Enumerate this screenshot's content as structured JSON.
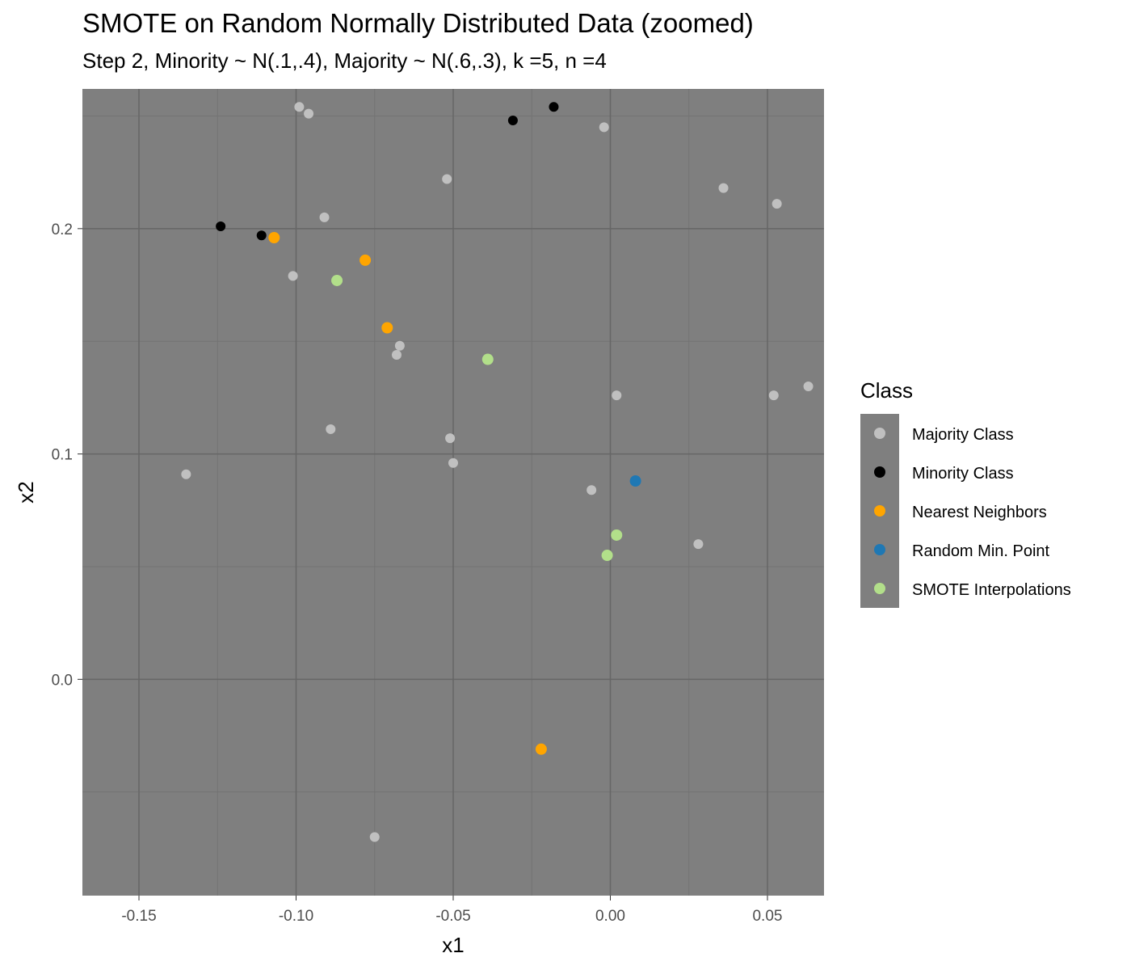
{
  "chart_data": {
    "type": "scatter",
    "title": "SMOTE on Random Normally Distributed Data (zoomed)",
    "subtitle": "Step 2, Minority ~ N(.1,.4), Majority ~ N(.6,.3), k =5, n =4",
    "xlabel": "x1",
    "ylabel": "x2",
    "xlim": [
      -0.168,
      0.068
    ],
    "ylim": [
      -0.096,
      0.262
    ],
    "x_ticks": [
      -0.15,
      -0.1,
      -0.05,
      0.0,
      0.05
    ],
    "x_tick_labels": [
      "-0.15",
      "-0.10",
      "-0.05",
      "0.00",
      "0.05"
    ],
    "y_ticks": [
      0.0,
      0.1,
      0.2
    ],
    "y_tick_labels": [
      "0.0",
      "0.1",
      "0.2"
    ],
    "grid": true,
    "panel_background": "#7f7f7f",
    "legend": {
      "title": "Class",
      "position": "right"
    },
    "series": [
      {
        "name": "Majority Class",
        "color": "#c0c0c0",
        "points": [
          {
            "x": -0.099,
            "y": 0.254
          },
          {
            "x": -0.096,
            "y": 0.251
          },
          {
            "x": -0.002,
            "y": 0.245
          },
          {
            "x": -0.052,
            "y": 0.222
          },
          {
            "x": 0.036,
            "y": 0.218
          },
          {
            "x": 0.053,
            "y": 0.211
          },
          {
            "x": -0.091,
            "y": 0.205
          },
          {
            "x": -0.101,
            "y": 0.179
          },
          {
            "x": -0.067,
            "y": 0.148
          },
          {
            "x": -0.068,
            "y": 0.144
          },
          {
            "x": 0.002,
            "y": 0.126
          },
          {
            "x": 0.052,
            "y": 0.126
          },
          {
            "x": 0.063,
            "y": 0.13
          },
          {
            "x": -0.089,
            "y": 0.111
          },
          {
            "x": -0.051,
            "y": 0.107
          },
          {
            "x": -0.05,
            "y": 0.096
          },
          {
            "x": -0.135,
            "y": 0.091
          },
          {
            "x": -0.006,
            "y": 0.084
          },
          {
            "x": 0.028,
            "y": 0.06
          },
          {
            "x": -0.075,
            "y": -0.07
          }
        ]
      },
      {
        "name": "Minority Class",
        "color": "#000000",
        "points": [
          {
            "x": -0.018,
            "y": 0.254
          },
          {
            "x": -0.031,
            "y": 0.248
          },
          {
            "x": -0.124,
            "y": 0.201
          },
          {
            "x": -0.111,
            "y": 0.197
          }
        ]
      },
      {
        "name": "Nearest Neighbors",
        "color": "#ffa500",
        "points": [
          {
            "x": -0.107,
            "y": 0.196
          },
          {
            "x": -0.078,
            "y": 0.186
          },
          {
            "x": -0.071,
            "y": 0.156
          },
          {
            "x": -0.022,
            "y": -0.031
          }
        ]
      },
      {
        "name": "Random Min. Point",
        "color": "#1f78b4",
        "points": [
          {
            "x": 0.008,
            "y": 0.088
          }
        ]
      },
      {
        "name": "SMOTE Interpolations",
        "color": "#b2df8a",
        "points": [
          {
            "x": -0.087,
            "y": 0.177
          },
          {
            "x": -0.039,
            "y": 0.142
          },
          {
            "x": 0.002,
            "y": 0.064
          },
          {
            "x": -0.001,
            "y": 0.055
          }
        ]
      }
    ]
  }
}
